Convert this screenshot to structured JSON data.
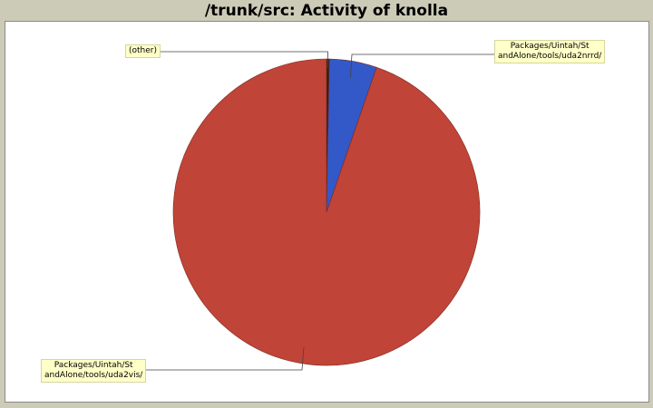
{
  "chart_data": {
    "type": "pie",
    "title": "/trunk/src: Activity of knolla",
    "slices": [
      {
        "label": "(other)",
        "value": 0.3,
        "color": "#222222"
      },
      {
        "label": "Packages/Uintah/StandAlone/tools/uda2nrrd/",
        "value": 5.0,
        "color": "#3358c8"
      },
      {
        "label": "Packages/Uintah/StandAlone/tools/uda2vis/",
        "value": 94.7,
        "color": "#c04437"
      }
    ],
    "labels": {
      "other": "(other)",
      "uda2nrrd": "Packages/Uintah/St\nandAlone/tools/uda2nrrd/",
      "uda2vis": "Packages/Uintah/St\nandAlone/tools/uda2vis/"
    }
  }
}
